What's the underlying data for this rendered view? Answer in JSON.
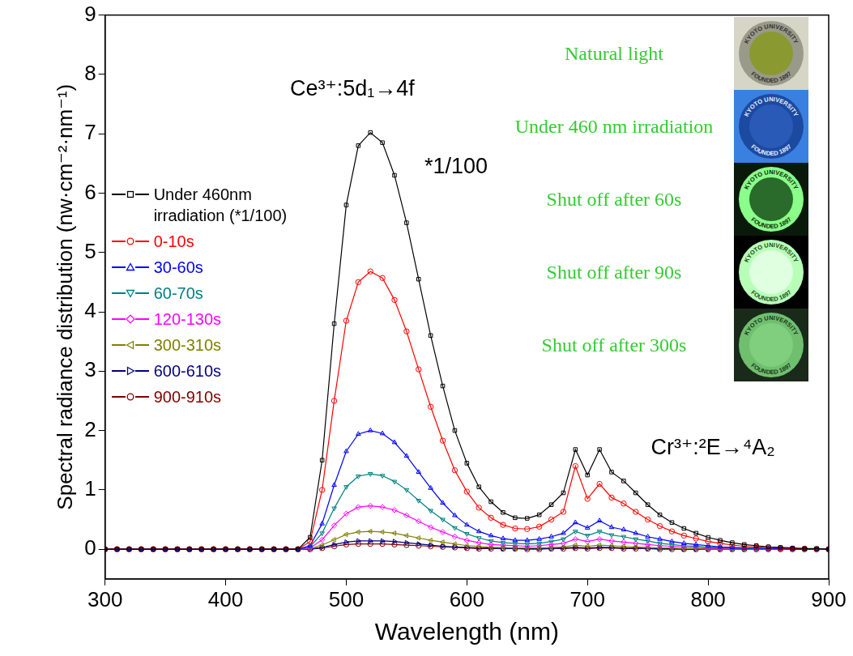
{
  "chart_data": {
    "type": "line",
    "x_label": "Wavelength (nm)",
    "y_label": "Spectral radiance distribution (nw·cm⁻²·nm⁻¹)",
    "x": [
      300,
      310,
      320,
      330,
      340,
      350,
      360,
      370,
      380,
      390,
      400,
      410,
      420,
      430,
      440,
      450,
      460,
      470,
      480,
      490,
      500,
      510,
      520,
      530,
      540,
      550,
      560,
      570,
      580,
      590,
      600,
      610,
      620,
      630,
      640,
      650,
      660,
      670,
      680,
      690,
      700,
      710,
      720,
      730,
      740,
      750,
      760,
      770,
      780,
      790,
      800,
      810,
      820,
      830,
      840,
      850,
      860,
      870,
      880,
      890,
      900
    ],
    "xlim": [
      300,
      900
    ],
    "xticks": [
      300,
      400,
      500,
      600,
      700,
      800,
      900
    ],
    "ylim": [
      -0.5,
      9
    ],
    "yticks": [
      0,
      1,
      2,
      3,
      4,
      5,
      6,
      7,
      8,
      9
    ],
    "grid": false,
    "legend": "left",
    "series": [
      {
        "name": "Under 460nm irradiation (*1/100)",
        "color": "#000000",
        "marker": "square",
        "values": [
          0,
          0,
          0,
          0,
          0,
          0,
          0,
          0,
          0,
          0,
          0,
          0,
          0,
          0,
          0,
          0,
          0,
          0.2,
          1.5,
          3.8,
          5.8,
          6.8,
          7.02,
          6.85,
          6.3,
          5.5,
          4.55,
          3.6,
          2.75,
          2.0,
          1.45,
          1.05,
          0.8,
          0.62,
          0.53,
          0.52,
          0.58,
          0.75,
          0.95,
          1.68,
          1.25,
          1.68,
          1.3,
          1.15,
          0.95,
          0.75,
          0.58,
          0.45,
          0.35,
          0.27,
          0.2,
          0.15,
          0.11,
          0.08,
          0.06,
          0.04,
          0.03,
          0.02,
          0.01,
          0.01,
          0
        ]
      },
      {
        "name": "0-10s",
        "color": "#ff0000",
        "marker": "circle",
        "values": [
          0,
          0,
          0,
          0,
          0,
          0,
          0,
          0,
          0,
          0,
          0,
          0,
          0,
          0,
          0,
          0,
          0,
          0.13,
          1.0,
          2.5,
          3.85,
          4.5,
          4.68,
          4.57,
          4.2,
          3.67,
          3.03,
          2.4,
          1.83,
          1.33,
          0.97,
          0.7,
          0.53,
          0.41,
          0.35,
          0.34,
          0.38,
          0.5,
          0.63,
          1.4,
          0.85,
          1.1,
          0.87,
          0.77,
          0.63,
          0.5,
          0.39,
          0.3,
          0.23,
          0.18,
          0.13,
          0.1,
          0.07,
          0.05,
          0.04,
          0.03,
          0.02,
          0.01,
          0.01,
          0,
          0
        ]
      },
      {
        "name": "30-60s",
        "color": "#0000ff",
        "marker": "triangle",
        "values": [
          0,
          0,
          0,
          0,
          0,
          0,
          0,
          0,
          0,
          0,
          0,
          0,
          0,
          0,
          0,
          0,
          0,
          0.06,
          0.43,
          1.08,
          1.65,
          1.94,
          2.0,
          1.95,
          1.8,
          1.57,
          1.3,
          1.03,
          0.78,
          0.57,
          0.41,
          0.3,
          0.23,
          0.18,
          0.15,
          0.15,
          0.17,
          0.21,
          0.27,
          0.45,
          0.36,
          0.48,
          0.37,
          0.33,
          0.27,
          0.21,
          0.17,
          0.13,
          0.1,
          0.08,
          0.06,
          0.04,
          0.03,
          0.02,
          0.02,
          0.01,
          0.01,
          0,
          0,
          0,
          0
        ]
      },
      {
        "name": "60-70s",
        "color": "#008080",
        "marker": "triangle_down",
        "values": [
          0,
          0,
          0,
          0,
          0,
          0,
          0,
          0,
          0,
          0,
          0,
          0,
          0,
          0,
          0,
          0,
          0,
          0.04,
          0.27,
          0.69,
          1.05,
          1.23,
          1.27,
          1.24,
          1.14,
          1.0,
          0.82,
          0.65,
          0.5,
          0.36,
          0.26,
          0.19,
          0.14,
          0.11,
          0.1,
          0.09,
          0.1,
          0.13,
          0.17,
          0.3,
          0.23,
          0.3,
          0.24,
          0.21,
          0.17,
          0.14,
          0.1,
          0.08,
          0.06,
          0.05,
          0.04,
          0.03,
          0.02,
          0.01,
          0.01,
          0,
          0,
          0,
          0,
          0,
          0
        ]
      },
      {
        "name": "120-130s",
        "color": "#ff00ff",
        "marker": "diamond",
        "values": [
          0,
          0,
          0,
          0,
          0,
          0,
          0,
          0,
          0,
          0,
          0,
          0,
          0,
          0,
          0,
          0,
          0,
          0.02,
          0.16,
          0.4,
          0.6,
          0.71,
          0.73,
          0.71,
          0.66,
          0.57,
          0.47,
          0.37,
          0.29,
          0.21,
          0.15,
          0.11,
          0.08,
          0.07,
          0.06,
          0.05,
          0.06,
          0.08,
          0.1,
          0.17,
          0.13,
          0.17,
          0.14,
          0.12,
          0.1,
          0.08,
          0.06,
          0.05,
          0.04,
          0.03,
          0.02,
          0.02,
          0.01,
          0.01,
          0,
          0,
          0,
          0,
          0,
          0,
          0
        ]
      },
      {
        "name": "300-310s",
        "color": "#808000",
        "marker": "triangle_left",
        "values": [
          0,
          0,
          0,
          0,
          0,
          0,
          0,
          0,
          0,
          0,
          0,
          0,
          0,
          0,
          0,
          0,
          0,
          0.01,
          0.07,
          0.16,
          0.25,
          0.29,
          0.3,
          0.29,
          0.27,
          0.23,
          0.19,
          0.15,
          0.12,
          0.09,
          0.06,
          0.05,
          0.03,
          0.03,
          0.02,
          0.02,
          0.02,
          0.03,
          0.04,
          0.07,
          0.05,
          0.07,
          0.06,
          0.05,
          0.04,
          0.03,
          0.02,
          0.02,
          0.01,
          0.01,
          0,
          0,
          0,
          0,
          0,
          0,
          0,
          0,
          0,
          0,
          0
        ]
      },
      {
        "name": "600-610s",
        "color": "#000080",
        "marker": "triangle_right",
        "values": [
          0,
          0,
          0,
          0,
          0,
          0,
          0,
          0,
          0,
          0,
          0,
          0,
          0,
          0,
          0,
          0,
          0,
          0,
          0.03,
          0.08,
          0.12,
          0.14,
          0.14,
          0.14,
          0.13,
          0.11,
          0.09,
          0.07,
          0.05,
          0.04,
          0.03,
          0.02,
          0.02,
          0.01,
          0.01,
          0.01,
          0.01,
          0.01,
          0.02,
          0.03,
          0.02,
          0.03,
          0.03,
          0.02,
          0.02,
          0.01,
          0.01,
          0.01,
          0,
          0,
          0,
          0,
          0,
          0,
          0,
          0,
          0,
          0,
          0,
          0,
          0
        ]
      },
      {
        "name": "900-910s",
        "color": "#800000",
        "marker": "circle",
        "values": [
          0,
          0,
          0,
          0,
          0,
          0,
          0,
          0,
          0,
          0,
          0,
          0,
          0,
          0,
          0,
          0,
          0,
          0,
          0.02,
          0.05,
          0.08,
          0.09,
          0.09,
          0.09,
          0.08,
          0.07,
          0.06,
          0.05,
          0.04,
          0.03,
          0.02,
          0.01,
          0.01,
          0.01,
          0.01,
          0,
          0,
          0.01,
          0.01,
          0.02,
          0.01,
          0.02,
          0.02,
          0.01,
          0.01,
          0.01,
          0,
          0,
          0,
          0,
          0,
          0,
          0,
          0,
          0,
          0,
          0,
          0,
          0,
          0,
          0
        ]
      }
    ],
    "annotations": [
      {
        "text": "Ce³⁺:5d₁→4f",
        "x": 505,
        "y": 7.75
      },
      {
        "text": "*1/100",
        "x": 591,
        "y": 6.44
      },
      {
        "text": "Cr³⁺:²E→⁴A₂",
        "x": 804,
        "y": 1.7
      }
    ],
    "inset_labels": [
      "Natural light",
      "Under 460 nm irradiation",
      "Shut off after 60s",
      "Shut off after 90s",
      "Shut off after 300s"
    ],
    "photo_texts": [
      "KYOTO UNIVERSITY",
      "FOUNDED 1897"
    ]
  }
}
